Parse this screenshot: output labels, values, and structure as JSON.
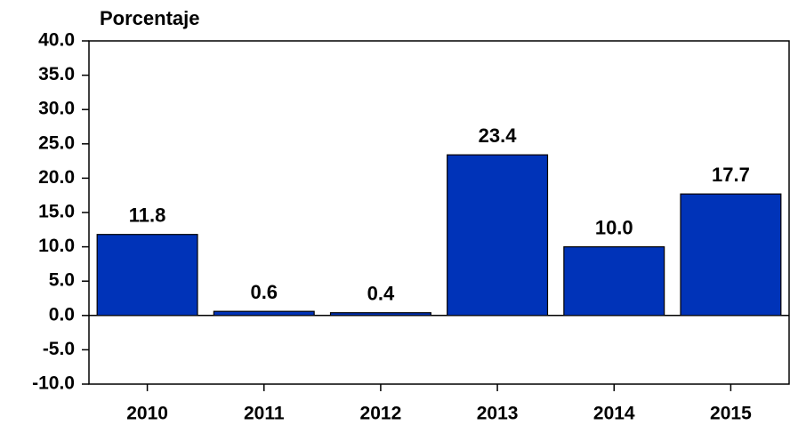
{
  "chart_data": {
    "type": "bar",
    "y_label": "Porcentaje",
    "categories": [
      "2010",
      "2011",
      "2012",
      "2013",
      "2014",
      "2015"
    ],
    "values": [
      11.8,
      0.6,
      0.4,
      23.4,
      10.0,
      17.7
    ],
    "value_labels": [
      "11.8",
      "0.6",
      "0.4",
      "23.4",
      "10.0",
      "17.7"
    ],
    "color": "#0033b8",
    "ylim": [
      -10,
      40
    ],
    "yticks": [
      {
        "value": -10,
        "label": "-10.0"
      },
      {
        "value": -5,
        "label": "-5.0"
      },
      {
        "value": 0,
        "label": "0.0"
      },
      {
        "value": 5,
        "label": "5.0"
      },
      {
        "value": 10,
        "label": "10.0"
      },
      {
        "value": 15,
        "label": "15.0"
      },
      {
        "value": 20,
        "label": "20.0"
      },
      {
        "value": 25,
        "label": "25.0"
      },
      {
        "value": 30,
        "label": "30.0"
      },
      {
        "value": 35,
        "label": "35.0"
      },
      {
        "value": 40,
        "label": "40.0"
      }
    ],
    "grid": false
  }
}
